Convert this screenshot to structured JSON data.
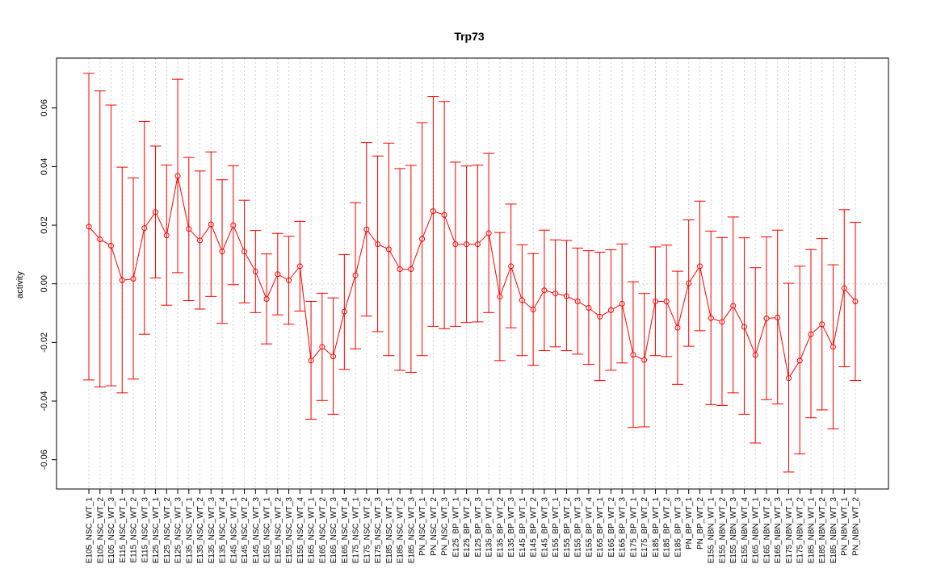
{
  "chart_data": {
    "type": "line",
    "title": "Trp73",
    "xlabel": "",
    "ylabel": "activity",
    "ylim": [
      -0.07,
      0.077
    ],
    "yticks": [
      -0.06,
      -0.04,
      -0.02,
      0.0,
      0.02,
      0.04,
      0.06
    ],
    "ytick_labels": [
      "-0.06",
      "-0.04",
      "-0.02",
      "0.00",
      "0.02",
      "0.04",
      "0.06"
    ],
    "grid": true,
    "reference_line": 0.0,
    "colors": {
      "series": "#ff0000",
      "grid": "#d0d0d0",
      "frame": "#000000"
    },
    "categories": [
      "E105_NSC_WT_1",
      "E105_NSC_WT_2",
      "E105_NSC_WT_3",
      "E115_NSC_WT_1",
      "E115_NSC_WT_2",
      "E115_NSC_WT_3",
      "E125_NSC_WT_1",
      "E125_NSC_WT_2",
      "E125_NSC_WT_3",
      "E135_NSC_WT_1",
      "E135_NSC_WT_2",
      "E135_NSC_WT_3",
      "E135_NSC_WT_4",
      "E145_NSC_WT_1",
      "E145_NSC_WT_2",
      "E145_NSC_WT_3",
      "E155_NSC_WT_1",
      "E155_NSC_WT_2",
      "E155_NSC_WT_3",
      "E155_NSC_WT_4",
      "E165_NSC_WT_1",
      "E165_NSC_WT_2",
      "E165_NSC_WT_3",
      "E165_NSC_WT_4",
      "E175_NSC_WT_1",
      "E175_NSC_WT_2",
      "E175_NSC_WT_3",
      "E185_NSC_WT_1",
      "E185_NSC_WT_2",
      "E185_NSC_WT_3",
      "PN_NSC_WT_1",
      "PN_NSC_WT_2",
      "PN_NSC_WT_3",
      "E125_BP_WT_1",
      "E125_BP_WT_2",
      "E125_BP_WT_3",
      "E135_BP_WT_1",
      "E135_BP_WT_2",
      "E135_BP_WT_3",
      "E145_BP_WT_1",
      "E145_BP_WT_2",
      "E145_BP_WT_3",
      "E155_BP_WT_1",
      "E155_BP_WT_2",
      "E155_BP_WT_3",
      "E155_BP_WT_4",
      "E165_BP_WT_1",
      "E165_BP_WT_2",
      "E165_BP_WT_3",
      "E175_BP_WT_1",
      "E175_BP_WT_2",
      "E185_BP_WT_1",
      "E185_BP_WT_2",
      "E185_BP_WT_3",
      "PN_BP_WT_1",
      "PN_BP_WT_2",
      "E155_NBN_WT_1",
      "E155_NBN_WT_2",
      "E155_NBN_WT_3",
      "E155_NBN_WT_4",
      "E165_NBN_WT_1",
      "E165_NBN_WT_2",
      "E165_NBN_WT_3",
      "E175_NBN_WT_1",
      "E175_NBN_WT_2",
      "E185_NBN_WT_1",
      "E185_NBN_WT_2",
      "E185_NBN_WT_3",
      "PN_NBN_WT_1",
      "PN_NBN_WT_2"
    ],
    "series": [
      {
        "values": [
          0.0195,
          0.0152,
          0.013,
          0.0012,
          0.0017,
          0.019,
          0.0245,
          0.0165,
          0.0368,
          0.0187,
          0.0148,
          0.0203,
          0.011,
          0.02,
          0.011,
          0.0042,
          -0.0052,
          0.0033,
          0.0012,
          0.006,
          -0.0262,
          -0.0215,
          -0.0248,
          -0.0095,
          0.0029,
          0.0186,
          0.0135,
          0.0118,
          0.005,
          0.005,
          0.0153,
          0.0248,
          0.0235,
          0.0135,
          0.0135,
          0.0135,
          0.0173,
          -0.0044,
          0.006,
          -0.0056,
          -0.0088,
          -0.0022,
          -0.0033,
          -0.0042,
          -0.006,
          -0.0082,
          -0.0112,
          -0.009,
          -0.0068,
          -0.0242,
          -0.026,
          -0.006,
          -0.006,
          -0.015,
          0.0002,
          0.006,
          -0.0117,
          -0.013,
          -0.0075,
          -0.0147,
          -0.0243,
          -0.0118,
          -0.0115,
          -0.0322,
          -0.0262,
          -0.0172,
          -0.0138,
          -0.0215,
          -0.0015,
          -0.006
        ],
        "upper": [
          0.0718,
          0.0658,
          0.061,
          0.0398,
          0.0361,
          0.0554,
          0.047,
          0.0405,
          0.0698,
          0.0431,
          0.0385,
          0.045,
          0.0355,
          0.0403,
          0.0285,
          0.0182,
          0.0102,
          0.0172,
          0.0162,
          0.0213,
          -0.006,
          -0.0032,
          -0.0048,
          0.01,
          0.0277,
          0.0482,
          0.0436,
          0.048,
          0.0393,
          0.0404,
          0.055,
          0.0639,
          0.0622,
          0.0415,
          0.0402,
          0.0405,
          0.0445,
          0.0175,
          0.0272,
          0.0133,
          0.0103,
          0.0183,
          0.015,
          0.0148,
          0.0122,
          0.0113,
          0.0108,
          0.0116,
          0.0136,
          0.0007,
          -0.0033,
          0.0126,
          0.0132,
          0.0043,
          0.0218,
          0.0282,
          0.018,
          0.0158,
          0.0228,
          0.0157,
          0.0055,
          0.016,
          0.0183,
          0.0002,
          0.006,
          0.0117,
          0.0155,
          0.0065,
          0.0253,
          0.021
        ],
        "lower": [
          -0.0328,
          -0.0352,
          -0.0348,
          -0.0372,
          -0.0325,
          -0.0172,
          0.002,
          -0.0073,
          0.0038,
          -0.0057,
          -0.0086,
          -0.0043,
          -0.0135,
          -0.0003,
          -0.0065,
          -0.0098,
          -0.0205,
          -0.0106,
          -0.0138,
          -0.0093,
          -0.0462,
          -0.0398,
          -0.0445,
          -0.0292,
          -0.0222,
          -0.011,
          -0.0163,
          -0.0245,
          -0.0295,
          -0.0302,
          -0.0245,
          -0.0145,
          -0.0153,
          -0.0145,
          -0.0132,
          -0.013,
          -0.0098,
          -0.0262,
          -0.015,
          -0.0245,
          -0.0278,
          -0.0228,
          -0.0215,
          -0.0228,
          -0.024,
          -0.0275,
          -0.033,
          -0.0295,
          -0.027,
          -0.049,
          -0.0488,
          -0.0245,
          -0.0248,
          -0.0343,
          -0.0213,
          -0.016,
          -0.0412,
          -0.0415,
          -0.0372,
          -0.0445,
          -0.0543,
          -0.0395,
          -0.041,
          -0.0642,
          -0.058,
          -0.0457,
          -0.043,
          -0.0495,
          -0.0283,
          -0.033
        ]
      }
    ]
  }
}
